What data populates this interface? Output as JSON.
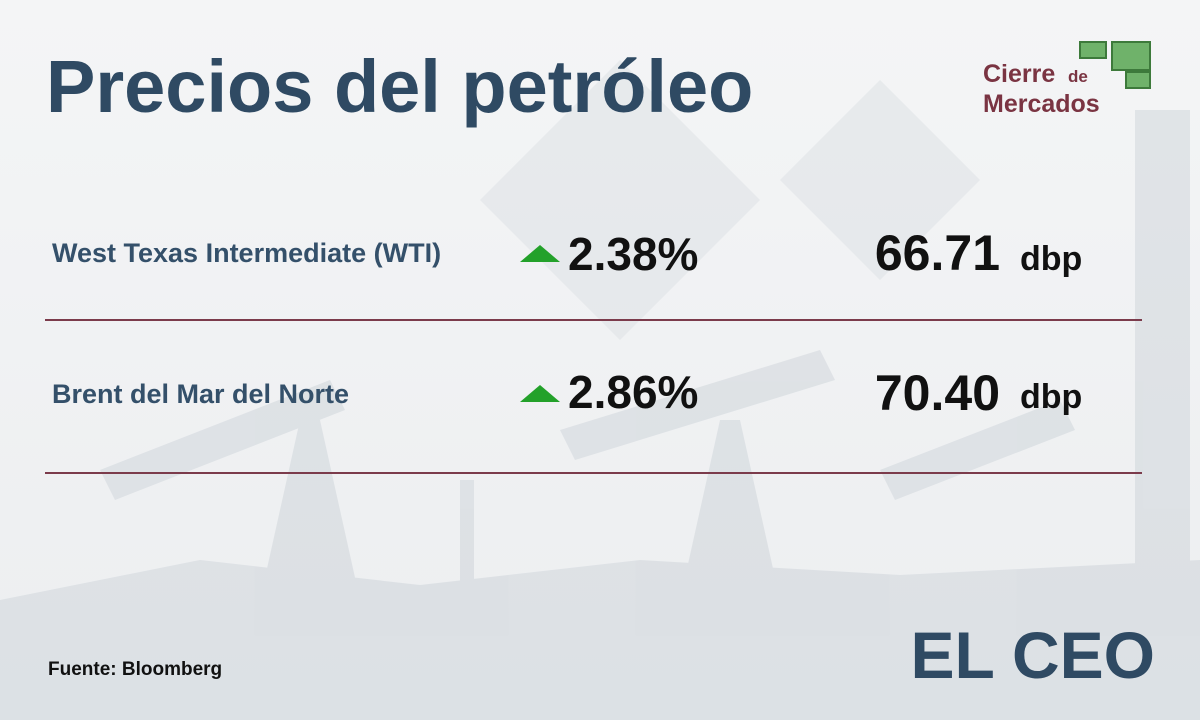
{
  "header": {
    "title": "Precios del petróleo",
    "brand": {
      "line1": "Cierre",
      "small": "de",
      "line2": "Mercados"
    }
  },
  "rows": [
    {
      "name": "West Texas Intermediate (WTI)",
      "change": "2.38%",
      "price": "66.71",
      "unit": "dbp"
    },
    {
      "name": "Brent del Mar del Norte",
      "change": "2.86%",
      "price": "70.40",
      "unit": "dbp"
    }
  ],
  "footer": {
    "source": "Fuente: Bloomberg",
    "logo": "EL CEO"
  }
}
